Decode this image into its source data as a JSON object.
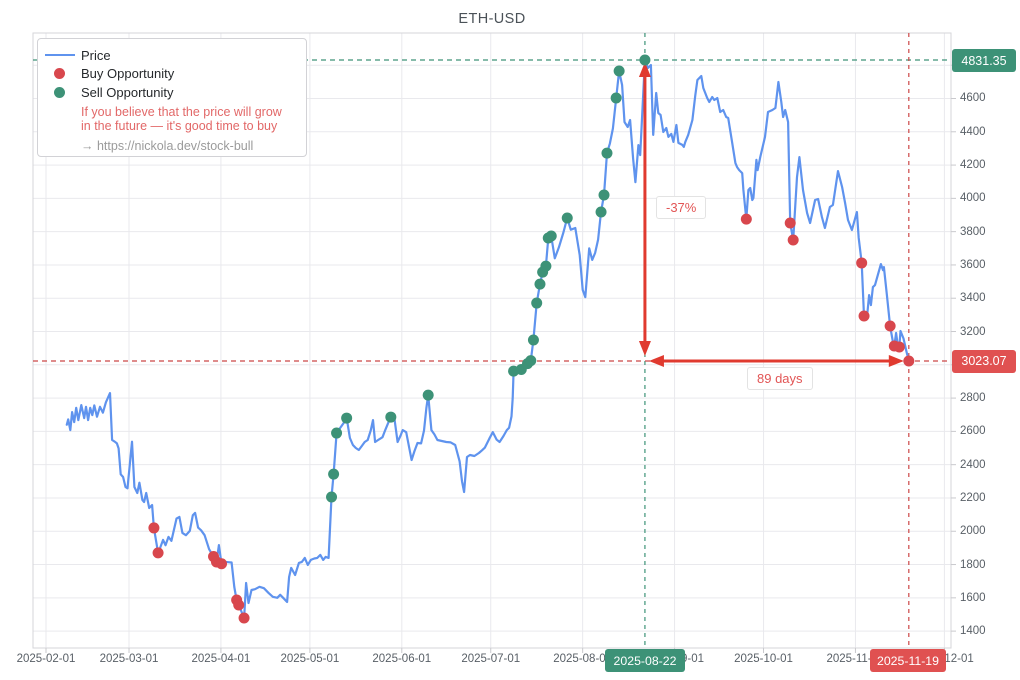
{
  "title": "ETH-USD",
  "colors": {
    "price_line": "#5f93ee",
    "buy": "#d8474d",
    "sell": "#3d9277",
    "sell_badge_bg": "#3d9277",
    "buy_badge_bg": "#e05151",
    "dashed_green": "#3d9277",
    "dashed_red": "#cc4747",
    "arrow_red": "#e03a2f",
    "grid": "#e9e9ed",
    "border": "#d5d5d9",
    "tick": "#c9c9cd"
  },
  "legend": {
    "items": [
      {
        "label": "Price",
        "type": "line"
      },
      {
        "label": "Buy Opportunity",
        "type": "dot-red"
      },
      {
        "label": "Sell Opportunity",
        "type": "dot-green"
      }
    ],
    "note_line1": "If you believe that the price will grow",
    "note_line2": "in the future — it's good time to buy",
    "link": "→ https://nickola.dev/stock-bull"
  },
  "annotations": {
    "high_label": "4831.35",
    "low_label": "3023.07",
    "high_date": "2025-08-22",
    "low_date": "2025-11-19",
    "drop_percent": "-37%",
    "duration": "89 days"
  },
  "axes": {
    "x_ticks": [
      {
        "label": "2025-02-01",
        "day": 0
      },
      {
        "label": "2025-03-01",
        "day": 28
      },
      {
        "label": "2025-04-01",
        "day": 59
      },
      {
        "label": "2025-05-01",
        "day": 89
      },
      {
        "label": "2025-06-01",
        "day": 120
      },
      {
        "label": "2025-07-01",
        "day": 150
      },
      {
        "label": "2025-08-01",
        "day": 181
      },
      {
        "label": "2025-09-01",
        "day": 212
      },
      {
        "label": "2025-10-01",
        "day": 242
      },
      {
        "label": "2025-11-01",
        "day": 273
      },
      {
        "label": "2025-12-01",
        "day": 303
      }
    ],
    "y_tick_labels": [
      4600,
      4400,
      4200,
      4000,
      3800,
      3600,
      3400,
      3200,
      2800,
      2600,
      2400,
      2200,
      2000,
      1800,
      1600,
      1400
    ],
    "y_gridlines": [
      1400,
      1600,
      1800,
      2000,
      2200,
      2400,
      2600,
      2800,
      3000,
      3200,
      3400,
      3600,
      3800,
      4000,
      4200,
      4400,
      4600,
      4800
    ]
  },
  "chart_data": {
    "type": "line",
    "title": "ETH-USD",
    "x_unit": "days since 2025-02-01",
    "x_range_days": [
      0,
      303
    ],
    "ylim": [
      1300,
      4990
    ],
    "grid": true,
    "legend_position": "top-left",
    "high_point": {
      "day": 202,
      "value": 4831.35,
      "date": "2025-08-22"
    },
    "low_point": {
      "day": 291,
      "value": 3023.07,
      "date": "2025-11-19"
    },
    "drop_percent": -37,
    "drop_duration_days": 89,
    "price_series": [
      [
        7,
        2640
      ],
      [
        7.5,
        2672
      ],
      [
        8.2,
        2608
      ],
      [
        8.8,
        2716
      ],
      [
        9.5,
        2656
      ],
      [
        10.2,
        2742
      ],
      [
        10.9,
        2668
      ],
      [
        11.9,
        2758
      ],
      [
        12.9,
        2680
      ],
      [
        13.5,
        2748
      ],
      [
        14.2,
        2668
      ],
      [
        14.9,
        2742
      ],
      [
        15.6,
        2698
      ],
      [
        16.3,
        2756
      ],
      [
        17.2,
        2688
      ],
      [
        18.2,
        2748
      ],
      [
        19.2,
        2712
      ],
      [
        20.2,
        2775
      ],
      [
        21.6,
        2830
      ],
      [
        22.3,
        2548
      ],
      [
        23.2,
        2538
      ],
      [
        23.9,
        2528
      ],
      [
        24.5,
        2498
      ],
      [
        25.2,
        2342
      ],
      [
        26,
        2326
      ],
      [
        26.8,
        2266
      ],
      [
        27.5,
        2258
      ],
      [
        29,
        2538
      ],
      [
        29.8,
        2266
      ],
      [
        30.8,
        2230
      ],
      [
        31.5,
        2292
      ],
      [
        32.5,
        2188
      ],
      [
        33.1,
        2176
      ],
      [
        33.8,
        2230
      ],
      [
        34.8,
        2140
      ],
      [
        35.8,
        2158
      ],
      [
        36.4,
        2020
      ],
      [
        37.8,
        1870
      ],
      [
        38.5,
        1902
      ],
      [
        39.5,
        1948
      ],
      [
        40.3,
        1916
      ],
      [
        41.3,
        1966
      ],
      [
        42.3,
        1942
      ],
      [
        44,
        2076
      ],
      [
        45,
        2086
      ],
      [
        46,
        1990
      ],
      [
        47.2,
        1976
      ],
      [
        48.5,
        2002
      ],
      [
        49.5,
        2096
      ],
      [
        50.3,
        2110
      ],
      [
        51.3,
        2022
      ],
      [
        52.3,
        2006
      ],
      [
        53.5,
        1976
      ],
      [
        55,
        1892
      ],
      [
        56.5,
        1848
      ],
      [
        57.5,
        1815
      ],
      [
        58.3,
        1917
      ],
      [
        59.2,
        1805
      ],
      [
        60.2,
        1816
      ],
      [
        61.5,
        1814
      ],
      [
        62.6,
        1812
      ],
      [
        63.5,
        1665
      ],
      [
        64.3,
        1587
      ],
      [
        65,
        1557
      ],
      [
        65.7,
        1527
      ],
      [
        66.8,
        1479
      ],
      [
        67.5,
        1689
      ],
      [
        68.3,
        1569
      ],
      [
        69.3,
        1647
      ],
      [
        70.5,
        1652
      ],
      [
        72,
        1666
      ],
      [
        73.5,
        1658
      ],
      [
        75,
        1630
      ],
      [
        76.5,
        1606
      ],
      [
        78,
        1600
      ],
      [
        79,
        1618
      ],
      [
        80.3,
        1594
      ],
      [
        81.3,
        1575
      ],
      [
        82,
        1725
      ],
      [
        82.7,
        1780
      ],
      [
        84,
        1737
      ],
      [
        85.3,
        1810
      ],
      [
        86.3,
        1816
      ],
      [
        87.3,
        1840
      ],
      [
        88.3,
        1797
      ],
      [
        89.3,
        1828
      ],
      [
        90.5,
        1836
      ],
      [
        91.5,
        1840
      ],
      [
        92.5,
        1858
      ],
      [
        93.5,
        1828
      ],
      [
        94.3,
        1846
      ],
      [
        95.3,
        1840
      ],
      [
        96.3,
        2206
      ],
      [
        97,
        2343
      ],
      [
        98,
        2590
      ],
      [
        99,
        2615
      ],
      [
        100.3,
        2648
      ],
      [
        101.4,
        2680
      ],
      [
        102.5,
        2560
      ],
      [
        103.5,
        2518
      ],
      [
        104.5,
        2500
      ],
      [
        105.5,
        2488
      ],
      [
        106.5,
        2512
      ],
      [
        107.5,
        2536
      ],
      [
        108.5,
        2548
      ],
      [
        109.5,
        2605
      ],
      [
        110.3,
        2668
      ],
      [
        111,
        2536
      ],
      [
        112,
        2548
      ],
      [
        113.5,
        2565
      ],
      [
        114.5,
        2612
      ],
      [
        115.5,
        2655
      ],
      [
        116.3,
        2686
      ],
      [
        117.5,
        2678
      ],
      [
        118.6,
        2536
      ],
      [
        119.6,
        2575
      ],
      [
        120.3,
        2608
      ],
      [
        121.5,
        2595
      ],
      [
        122.5,
        2502
      ],
      [
        123.3,
        2428
      ],
      [
        124.3,
        2482
      ],
      [
        125.3,
        2530
      ],
      [
        126.5,
        2528
      ],
      [
        127.5,
        2605
      ],
      [
        128.3,
        2742
      ],
      [
        128.9,
        2818
      ],
      [
        130,
        2608
      ],
      [
        131,
        2582
      ],
      [
        132,
        2548
      ],
      [
        133.5,
        2542
      ],
      [
        135,
        2536
      ],
      [
        136.5,
        2534
      ],
      [
        138,
        2518
      ],
      [
        139.5,
        2420
      ],
      [
        140.3,
        2300
      ],
      [
        141,
        2236
      ],
      [
        142,
        2446
      ],
      [
        143,
        2458
      ],
      [
        144.5,
        2452
      ],
      [
        146,
        2470
      ],
      [
        147,
        2486
      ],
      [
        148,
        2502
      ],
      [
        149.5,
        2556
      ],
      [
        150.7,
        2596
      ],
      [
        152,
        2550
      ],
      [
        153,
        2536
      ],
      [
        154.3,
        2572
      ],
      [
        155.4,
        2608
      ],
      [
        156.2,
        2622
      ],
      [
        157,
        2690
      ],
      [
        157.4,
        2800
      ],
      [
        157.7,
        2962
      ],
      [
        158.8,
        2952
      ],
      [
        159.6,
        2968
      ],
      [
        160.3,
        2972
      ],
      [
        161.4,
        2990
      ],
      [
        162.4,
        3007
      ],
      [
        163.5,
        3025
      ],
      [
        164.4,
        3149
      ],
      [
        165.5,
        3371
      ],
      [
        166.6,
        3485
      ],
      [
        167.5,
        3557
      ],
      [
        168.6,
        3593
      ],
      [
        169.4,
        3762
      ],
      [
        170.4,
        3774
      ],
      [
        171.6,
        3640
      ],
      [
        173,
        3706
      ],
      [
        174.5,
        3795
      ],
      [
        175.8,
        3882
      ],
      [
        177,
        3812
      ],
      [
        178.5,
        3822
      ],
      [
        180,
        3660
      ],
      [
        181,
        3450
      ],
      [
        181.9,
        3407
      ],
      [
        183.2,
        3700
      ],
      [
        184.2,
        3630
      ],
      [
        185.2,
        3672
      ],
      [
        186.2,
        3752
      ],
      [
        187.2,
        3918
      ],
      [
        188.2,
        4020
      ],
      [
        189.2,
        4272
      ],
      [
        190.2,
        4330
      ],
      [
        191.2,
        4420
      ],
      [
        192.3,
        4603
      ],
      [
        193.3,
        4765
      ],
      [
        194.3,
        4681
      ],
      [
        195.1,
        4459
      ],
      [
        196.2,
        4429
      ],
      [
        197,
        4471
      ],
      [
        198,
        4240
      ],
      [
        198.8,
        4098
      ],
      [
        199.8,
        4320
      ],
      [
        200.4,
        4260
      ],
      [
        202,
        4831.35
      ],
      [
        203,
        4783
      ],
      [
        204,
        4801
      ],
      [
        204.8,
        4381
      ],
      [
        205.8,
        4633
      ],
      [
        206.5,
        4513
      ],
      [
        207.3,
        4501
      ],
      [
        208.2,
        4399
      ],
      [
        209.2,
        4423
      ],
      [
        209.9,
        4369
      ],
      [
        210.9,
        4387
      ],
      [
        211.6,
        4339
      ],
      [
        212.6,
        4441
      ],
      [
        213.3,
        4333
      ],
      [
        214.6,
        4321
      ],
      [
        215.1,
        4309
      ],
      [
        215.6,
        4339
      ],
      [
        216.6,
        4381
      ],
      [
        218,
        4471
      ],
      [
        219,
        4620
      ],
      [
        219.7,
        4711
      ],
      [
        221,
        4735
      ],
      [
        221.7,
        4663
      ],
      [
        223,
        4603
      ],
      [
        223.7,
        4579
      ],
      [
        224.7,
        4609
      ],
      [
        225.4,
        4591
      ],
      [
        226.4,
        4603
      ],
      [
        227.4,
        4519
      ],
      [
        228.4,
        4531
      ],
      [
        229.4,
        4489
      ],
      [
        230.1,
        4483
      ],
      [
        231.2,
        4360
      ],
      [
        232.5,
        4212
      ],
      [
        233.1,
        4188
      ],
      [
        233.8,
        4170
      ],
      [
        234.8,
        4152
      ],
      [
        235.2,
        4050
      ],
      [
        236.2,
        3875
      ],
      [
        236.9,
        4050
      ],
      [
        237.5,
        4062
      ],
      [
        238.2,
        3990
      ],
      [
        238.6,
        4002
      ],
      [
        239.6,
        4231
      ],
      [
        240,
        4170
      ],
      [
        240.9,
        4249
      ],
      [
        242.5,
        4369
      ],
      [
        243.5,
        4519
      ],
      [
        245,
        4531
      ],
      [
        246,
        4543
      ],
      [
        247,
        4699
      ],
      [
        248,
        4579
      ],
      [
        248.6,
        4489
      ],
      [
        249.3,
        4531
      ],
      [
        250.3,
        4459
      ],
      [
        251,
        3852
      ],
      [
        252,
        3750
      ],
      [
        253.3,
        4128
      ],
      [
        254.1,
        4248
      ],
      [
        255.3,
        4050
      ],
      [
        256.7,
        3912
      ],
      [
        257.7,
        3852
      ],
      [
        259.4,
        3990
      ],
      [
        260.4,
        3996
      ],
      [
        261.7,
        3888
      ],
      [
        262.7,
        3822
      ],
      [
        264.4,
        3948
      ],
      [
        265.4,
        3960
      ],
      [
        267.1,
        4164
      ],
      [
        268.5,
        4068
      ],
      [
        269.5,
        3972
      ],
      [
        270.5,
        3870
      ],
      [
        271.8,
        3810
      ],
      [
        273.5,
        3918
      ],
      [
        274.1,
        3762
      ],
      [
        275.1,
        3612
      ],
      [
        275.9,
        3293
      ],
      [
        276.9,
        3287
      ],
      [
        277.6,
        3419
      ],
      [
        278.2,
        3359
      ],
      [
        278.9,
        3467
      ],
      [
        279.6,
        3479
      ],
      [
        281.6,
        3605
      ],
      [
        282.3,
        3569
      ],
      [
        282.6,
        3587
      ],
      [
        283.6,
        3419
      ],
      [
        284.7,
        3233
      ],
      [
        285.7,
        3131
      ],
      [
        286.1,
        3113
      ],
      [
        286.7,
        3191
      ],
      [
        287.4,
        3101
      ],
      [
        287.8,
        3107
      ],
      [
        288.2,
        3203
      ],
      [
        289.2,
        3158
      ],
      [
        290.2,
        3082
      ],
      [
        291,
        3023.07
      ]
    ],
    "buy_points": [
      [
        36.4,
        2020
      ],
      [
        37.8,
        1870
      ],
      [
        56.5,
        1848
      ],
      [
        57.5,
        1815
      ],
      [
        59.2,
        1805
      ],
      [
        64.3,
        1587
      ],
      [
        65,
        1557
      ],
      [
        66.8,
        1479
      ],
      [
        236.2,
        3875
      ],
      [
        251,
        3852
      ],
      [
        252,
        3750
      ],
      [
        275.1,
        3612
      ],
      [
        275.9,
        3293
      ],
      [
        284.7,
        3233
      ],
      [
        286.1,
        3113
      ],
      [
        287.8,
        3107
      ],
      [
        291,
        3023.07
      ]
    ],
    "sell_points": [
      [
        96.3,
        2206
      ],
      [
        97,
        2343
      ],
      [
        98,
        2590
      ],
      [
        101.4,
        2680
      ],
      [
        116.3,
        2686
      ],
      [
        128.9,
        2818
      ],
      [
        157.7,
        2962
      ],
      [
        160.3,
        2972
      ],
      [
        162.4,
        3007
      ],
      [
        163.5,
        3025
      ],
      [
        164.4,
        3149
      ],
      [
        165.5,
        3371
      ],
      [
        166.6,
        3485
      ],
      [
        167.5,
        3557
      ],
      [
        168.6,
        3593
      ],
      [
        169.4,
        3762
      ],
      [
        170.4,
        3774
      ],
      [
        175.8,
        3882
      ],
      [
        187.2,
        3918
      ],
      [
        188.2,
        4020
      ],
      [
        189.2,
        4272
      ],
      [
        192.3,
        4603
      ],
      [
        193.3,
        4765
      ],
      [
        202,
        4831.35
      ]
    ]
  }
}
